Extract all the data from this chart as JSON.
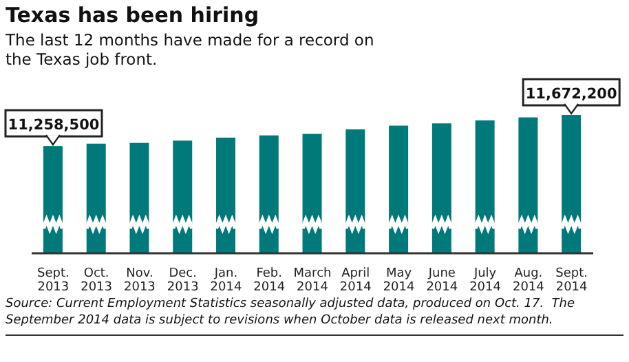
{
  "chart_data": {
    "type": "bar",
    "title": "Texas has been hiring",
    "subtitle": "The last 12 months have made for a record on the Texas job front.",
    "categories": [
      "Sept. 2013",
      "Oct. 2013",
      "Nov. 2013",
      "Dec. 2013",
      "Jan. 2014",
      "Feb. 2014",
      "March 2014",
      "April 2014",
      "May 2014",
      "June 2014",
      "July 2014",
      "Aug. 2014",
      "Sept. 2014"
    ],
    "values": [
      11258500,
      11290000,
      11300000,
      11330000,
      11370000,
      11400000,
      11420000,
      11480000,
      11530000,
      11560000,
      11600000,
      11640000,
      11672200
    ],
    "ylim": [
      9830000,
      11700000
    ],
    "value_labels": [
      "11,258,500",
      null,
      null,
      null,
      null,
      null,
      null,
      null,
      null,
      null,
      null,
      null,
      "11,672,200"
    ],
    "color": "#00797a",
    "legend": false,
    "annotations": [
      "Source: Current Employment Statistics seasonally adjusted data, produced on Oct. 17.  The September 2014 data is subject to revisions when October data is released next month."
    ]
  }
}
